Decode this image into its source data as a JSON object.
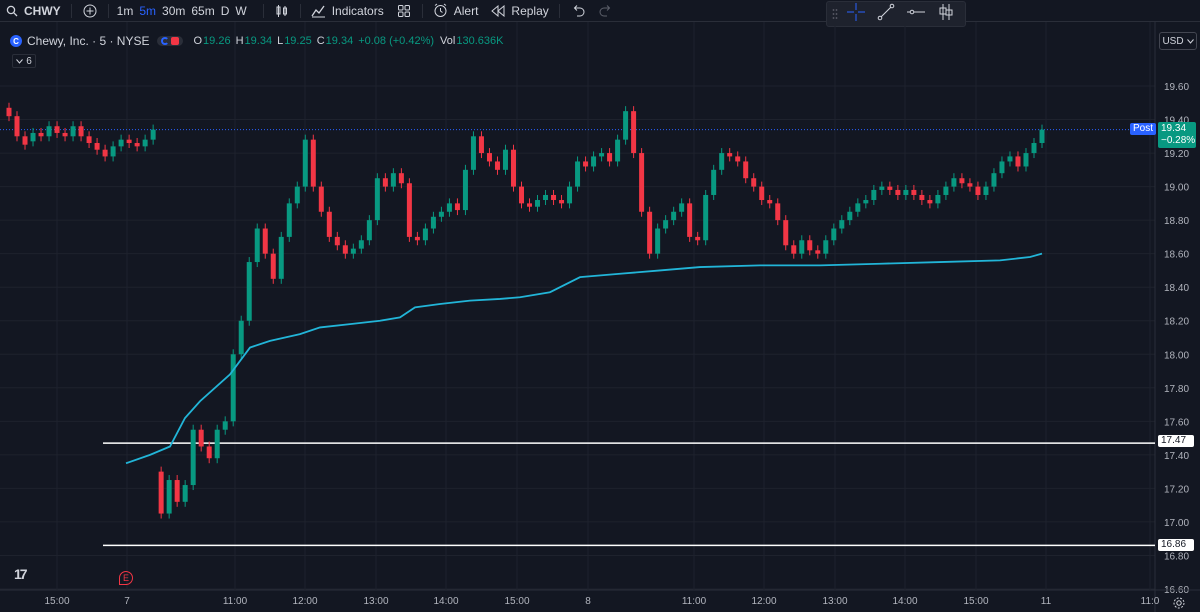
{
  "toolbar": {
    "symbol": "CHWY",
    "intervals": [
      "1m",
      "5m",
      "30m",
      "65m",
      "D",
      "W"
    ],
    "active_interval": "5m",
    "indicators_label": "Indicators",
    "alert_label": "Alert",
    "replay_label": "Replay"
  },
  "legend": {
    "title": "Chewy, Inc. · 5 · NYSE",
    "logo_letter": "C",
    "open_k": "O",
    "open_v": "19.26",
    "high_k": "H",
    "high_v": "19.34",
    "low_k": "L",
    "low_v": "19.25",
    "close_k": "C",
    "close_v": "19.34",
    "change": "+0.08 (+0.42%)",
    "vol_k": "Vol",
    "vol_v": "130.636K",
    "collapse_count": "6"
  },
  "currency": "USD",
  "price_tags": {
    "post_label": "Post",
    "last_price": "19.34",
    "last_change": "−0.28%",
    "line1": "17.47",
    "line2": "16.86"
  },
  "earnings_marker": "E",
  "colors": {
    "bg": "#131722",
    "up": "#089981",
    "down": "#f23645",
    "vwap": "#22b5d8",
    "grid": "#1e222d",
    "accent": "#2962ff"
  },
  "chart_data": {
    "type": "candlestick",
    "y_ticks": [
      "19.60",
      "19.40",
      "19.20",
      "19.00",
      "18.80",
      "18.60",
      "18.40",
      "18.20",
      "18.00",
      "17.80",
      "17.60",
      "17.40",
      "17.20",
      "17.00",
      "16.80",
      "16.60"
    ],
    "x_ticks": [
      "15:00",
      "7",
      "11:00",
      "12:00",
      "13:00",
      "14:00",
      "15:00",
      "8",
      "11:00",
      "12:00",
      "13:00",
      "14:00",
      "15:00",
      "11",
      "11:0"
    ],
    "ylim": [
      16.6,
      19.6
    ],
    "horizontal_lines": [
      17.47,
      16.86
    ],
    "last_price_line": 19.34,
    "candles": [
      [
        19.47,
        19.42
      ],
      [
        19.42,
        19.3
      ],
      [
        19.3,
        19.25
      ],
      [
        19.27,
        19.32
      ],
      [
        19.32,
        19.3
      ],
      [
        19.3,
        19.36
      ],
      [
        19.36,
        19.32
      ],
      [
        19.32,
        19.3
      ],
      [
        19.3,
        19.36
      ],
      [
        19.36,
        19.3
      ],
      [
        19.3,
        19.26
      ],
      [
        19.26,
        19.22
      ],
      [
        19.22,
        19.18
      ],
      [
        19.18,
        19.24
      ],
      [
        19.24,
        19.28
      ],
      [
        19.28,
        19.26
      ],
      [
        19.26,
        19.24
      ],
      [
        19.24,
        19.28
      ],
      [
        19.28,
        19.34
      ],
      [
        17.3,
        17.05
      ],
      [
        17.05,
        17.25
      ],
      [
        17.25,
        17.12
      ],
      [
        17.12,
        17.22
      ],
      [
        17.22,
        17.55
      ],
      [
        17.55,
        17.45
      ],
      [
        17.45,
        17.38
      ],
      [
        17.38,
        17.55
      ],
      [
        17.55,
        17.6
      ],
      [
        17.6,
        18.0
      ],
      [
        18.0,
        18.2
      ],
      [
        18.2,
        18.55
      ],
      [
        18.55,
        18.75
      ],
      [
        18.75,
        18.6
      ],
      [
        18.6,
        18.45
      ],
      [
        18.45,
        18.7
      ],
      [
        18.7,
        18.9
      ],
      [
        18.9,
        19.0
      ],
      [
        19.0,
        19.28
      ],
      [
        19.28,
        19.0
      ],
      [
        19.0,
        18.85
      ],
      [
        18.85,
        18.7
      ],
      [
        18.7,
        18.65
      ],
      [
        18.65,
        18.6
      ],
      [
        18.6,
        18.63
      ],
      [
        18.63,
        18.68
      ],
      [
        18.68,
        18.8
      ],
      [
        18.8,
        19.05
      ],
      [
        19.05,
        19.0
      ],
      [
        19.0,
        19.08
      ],
      [
        19.08,
        19.02
      ],
      [
        19.02,
        18.7
      ],
      [
        18.7,
        18.68
      ],
      [
        18.68,
        18.75
      ],
      [
        18.75,
        18.82
      ],
      [
        18.82,
        18.85
      ],
      [
        18.85,
        18.9
      ],
      [
        18.9,
        18.86
      ],
      [
        18.86,
        19.1
      ],
      [
        19.1,
        19.3
      ],
      [
        19.3,
        19.2
      ],
      [
        19.2,
        19.15
      ],
      [
        19.15,
        19.1
      ],
      [
        19.1,
        19.22
      ],
      [
        19.22,
        19.0
      ],
      [
        19.0,
        18.9
      ],
      [
        18.9,
        18.88
      ],
      [
        18.88,
        18.92
      ],
      [
        18.92,
        18.95
      ],
      [
        18.95,
        18.92
      ],
      [
        18.92,
        18.9
      ],
      [
        18.9,
        19.0
      ],
      [
        19.0,
        19.15
      ],
      [
        19.15,
        19.12
      ],
      [
        19.12,
        19.18
      ],
      [
        19.18,
        19.2
      ],
      [
        19.2,
        19.15
      ],
      [
        19.15,
        19.28
      ],
      [
        19.28,
        19.45
      ],
      [
        19.45,
        19.2
      ],
      [
        19.2,
        18.85
      ],
      [
        18.85,
        18.6
      ],
      [
        18.6,
        18.75
      ],
      [
        18.75,
        18.8
      ],
      [
        18.8,
        18.85
      ],
      [
        18.85,
        18.9
      ],
      [
        18.9,
        18.7
      ],
      [
        18.7,
        18.68
      ],
      [
        18.68,
        18.95
      ],
      [
        18.95,
        19.1
      ],
      [
        19.1,
        19.2
      ],
      [
        19.2,
        19.18
      ],
      [
        19.18,
        19.15
      ],
      [
        19.15,
        19.05
      ],
      [
        19.05,
        19.0
      ],
      [
        19.0,
        18.92
      ],
      [
        18.92,
        18.9
      ],
      [
        18.9,
        18.8
      ],
      [
        18.8,
        18.65
      ],
      [
        18.65,
        18.6
      ],
      [
        18.6,
        18.68
      ],
      [
        18.68,
        18.62
      ],
      [
        18.62,
        18.6
      ],
      [
        18.6,
        18.68
      ],
      [
        18.68,
        18.75
      ],
      [
        18.75,
        18.8
      ],
      [
        18.8,
        18.85
      ],
      [
        18.85,
        18.9
      ],
      [
        18.9,
        18.92
      ],
      [
        18.92,
        18.98
      ],
      [
        18.98,
        19.0
      ],
      [
        19.0,
        18.98
      ],
      [
        18.98,
        18.95
      ],
      [
        18.95,
        18.98
      ],
      [
        18.98,
        18.95
      ],
      [
        18.95,
        18.92
      ],
      [
        18.92,
        18.9
      ],
      [
        18.9,
        18.95
      ],
      [
        18.95,
        19.0
      ],
      [
        19.0,
        19.05
      ],
      [
        19.05,
        19.02
      ],
      [
        19.02,
        19.0
      ],
      [
        19.0,
        18.95
      ],
      [
        18.95,
        19.0
      ],
      [
        19.0,
        19.08
      ],
      [
        19.08,
        19.15
      ],
      [
        19.15,
        19.18
      ],
      [
        19.18,
        19.12
      ],
      [
        19.12,
        19.2
      ],
      [
        19.2,
        19.26
      ],
      [
        19.26,
        19.34
      ]
    ],
    "vwap": [
      [
        126,
        17.35
      ],
      [
        150,
        17.4
      ],
      [
        170,
        17.45
      ],
      [
        185,
        17.62
      ],
      [
        200,
        17.72
      ],
      [
        230,
        17.88
      ],
      [
        250,
        18.04
      ],
      [
        270,
        18.08
      ],
      [
        300,
        18.12
      ],
      [
        320,
        18.16
      ],
      [
        350,
        18.18
      ],
      [
        380,
        18.2
      ],
      [
        400,
        18.22
      ],
      [
        415,
        18.28
      ],
      [
        440,
        18.3
      ],
      [
        470,
        18.32
      ],
      [
        500,
        18.33
      ],
      [
        520,
        18.34
      ],
      [
        550,
        18.37
      ],
      [
        580,
        18.46
      ],
      [
        620,
        18.48
      ],
      [
        660,
        18.5
      ],
      [
        700,
        18.52
      ],
      [
        760,
        18.53
      ],
      [
        820,
        18.53
      ],
      [
        880,
        18.54
      ],
      [
        940,
        18.55
      ],
      [
        1000,
        18.56
      ],
      [
        1030,
        18.58
      ],
      [
        1042,
        18.6
      ]
    ]
  }
}
